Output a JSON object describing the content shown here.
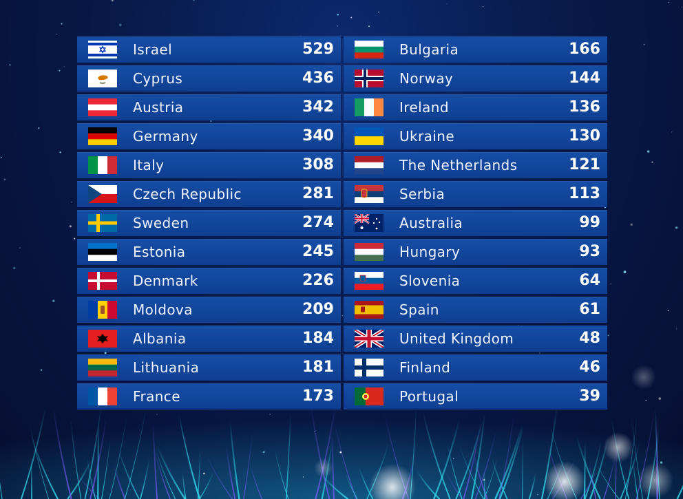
{
  "colors": {
    "row": "#164ea6",
    "text": "#eef3ff",
    "background": "#081a4a"
  },
  "left": [
    {
      "country": "Israel",
      "points": "529",
      "flag": "israel-flag-icon"
    },
    {
      "country": "Cyprus",
      "points": "436",
      "flag": "cyprus-flag-icon"
    },
    {
      "country": "Austria",
      "points": "342",
      "flag": "austria-flag-icon"
    },
    {
      "country": "Germany",
      "points": "340",
      "flag": "germany-flag-icon"
    },
    {
      "country": "Italy",
      "points": "308",
      "flag": "italy-flag-icon"
    },
    {
      "country": "Czech Republic",
      "points": "281",
      "flag": "czech-republic-flag-icon"
    },
    {
      "country": "Sweden",
      "points": "274",
      "flag": "sweden-flag-icon"
    },
    {
      "country": "Estonia",
      "points": "245",
      "flag": "estonia-flag-icon"
    },
    {
      "country": "Denmark",
      "points": "226",
      "flag": "denmark-flag-icon"
    },
    {
      "country": "Moldova",
      "points": "209",
      "flag": "moldova-flag-icon"
    },
    {
      "country": "Albania",
      "points": "184",
      "flag": "albania-flag-icon"
    },
    {
      "country": "Lithuania",
      "points": "181",
      "flag": "lithuania-flag-icon"
    },
    {
      "country": "France",
      "points": "173",
      "flag": "france-flag-icon"
    }
  ],
  "right": [
    {
      "country": "Bulgaria",
      "points": "166",
      "flag": "bulgaria-flag-icon"
    },
    {
      "country": "Norway",
      "points": "144",
      "flag": "norway-flag-icon"
    },
    {
      "country": "Ireland",
      "points": "136",
      "flag": "ireland-flag-icon"
    },
    {
      "country": "Ukraine",
      "points": "130",
      "flag": "ukraine-flag-icon"
    },
    {
      "country": "The Netherlands",
      "points": "121",
      "flag": "netherlands-flag-icon"
    },
    {
      "country": "Serbia",
      "points": "113",
      "flag": "serbia-flag-icon"
    },
    {
      "country": "Australia",
      "points": "99",
      "flag": "australia-flag-icon"
    },
    {
      "country": "Hungary",
      "points": "93",
      "flag": "hungary-flag-icon"
    },
    {
      "country": "Slovenia",
      "points": "64",
      "flag": "slovenia-flag-icon"
    },
    {
      "country": "Spain",
      "points": "61",
      "flag": "spain-flag-icon"
    },
    {
      "country": "United Kingdom",
      "points": "48",
      "flag": "united-kingdom-flag-icon"
    },
    {
      "country": "Finland",
      "points": "46",
      "flag": "finland-flag-icon"
    },
    {
      "country": "Portugal",
      "points": "39",
      "flag": "portugal-flag-icon"
    }
  ]
}
